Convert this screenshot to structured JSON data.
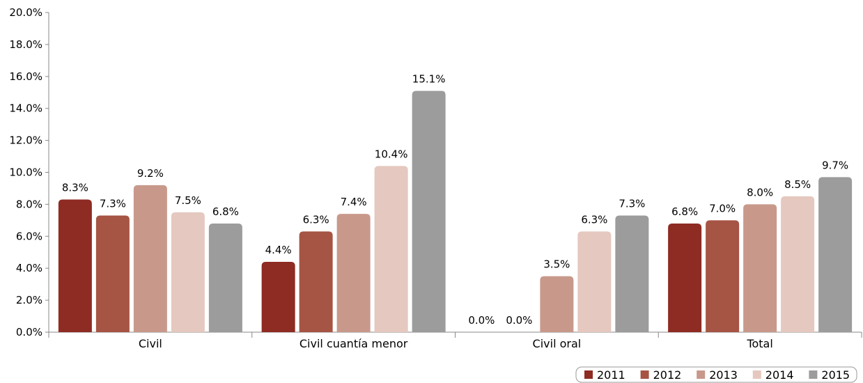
{
  "chart_data": {
    "type": "bar",
    "categories": [
      "Civil",
      "Civil cuantía menor",
      "Civil oral",
      "Total"
    ],
    "series": [
      {
        "name": "2011",
        "color": "#8e2b23",
        "values": [
          8.3,
          4.4,
          0.0,
          6.8
        ],
        "labels": [
          "8.3%",
          "4.4%",
          "0.0%",
          "6.8%"
        ]
      },
      {
        "name": "2012",
        "color": "#a65444",
        "values": [
          7.3,
          6.3,
          0.0,
          7.0
        ],
        "labels": [
          "7.3%",
          "6.3%",
          "0.0%",
          "7.0%"
        ]
      },
      {
        "name": "2013",
        "color": "#c8998b",
        "values": [
          9.2,
          7.4,
          3.5,
          8.0
        ],
        "labels": [
          "9.2%",
          "7.4%",
          "3.5%",
          "8.0%"
        ]
      },
      {
        "name": "2014",
        "color": "#e5c8bf",
        "values": [
          7.5,
          10.4,
          6.3,
          8.5
        ],
        "labels": [
          "7.5%",
          "10.4%",
          "6.3%",
          "8.5%"
        ]
      },
      {
        "name": "2015",
        "color": "#9c9c9c",
        "values": [
          6.8,
          15.1,
          7.3,
          9.7
        ],
        "labels": [
          "6.8%",
          "15.1%",
          "7.3%",
          "9.7%"
        ]
      }
    ],
    "yticks": [
      "0.0%",
      "2.0%",
      "4.0%",
      "6.0%",
      "8.0%",
      "10.0%",
      "12.0%",
      "14.0%",
      "16.0%",
      "18.0%",
      "20.0%"
    ],
    "ylim": [
      0,
      20
    ],
    "grid": false,
    "legend_position": "bottom-right"
  }
}
